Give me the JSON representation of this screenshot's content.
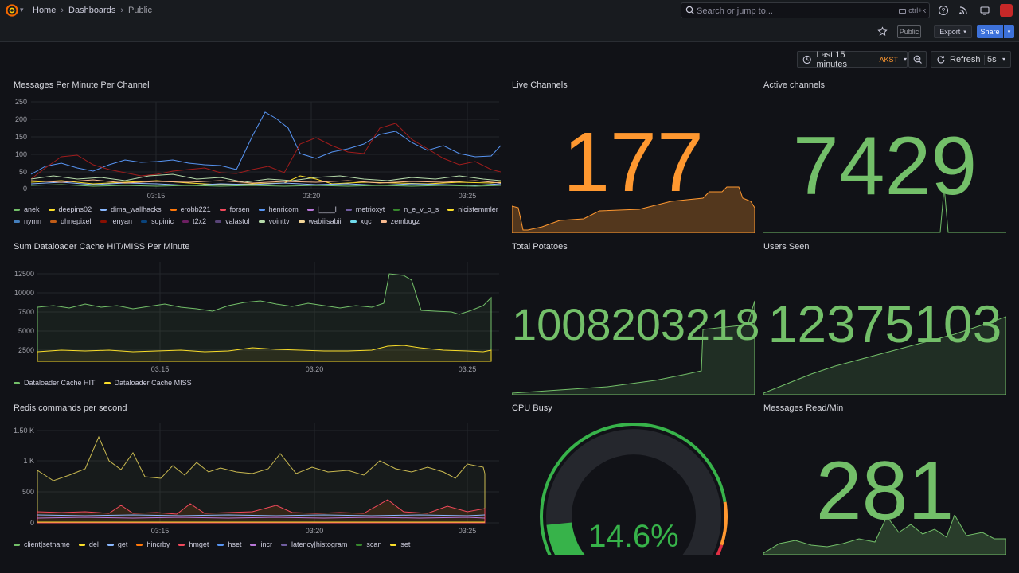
{
  "nav": {
    "breadcrumbs": [
      "Home",
      "Dashboards",
      "Public"
    ],
    "search_placeholder": "Search or jump to...",
    "search_shortcut": "ctrl+k"
  },
  "toolbar": {
    "public_label": "Public",
    "export_label": "Export",
    "share_label": "Share",
    "time_range": "Last 15 minutes",
    "timezone": "AKST",
    "refresh_label": "Refresh",
    "refresh_interval": "5s"
  },
  "time_ticks": [
    "03:15",
    "03:20",
    "03:25"
  ],
  "panels": {
    "messages_per_minute": {
      "title": "Messages Per Minute Per Channel",
      "y_ticks": [
        "250",
        "200",
        "150",
        "100",
        "50",
        "0"
      ],
      "legend": [
        {
          "name": "anek",
          "color": "#73bf69"
        },
        {
          "name": "deepins02",
          "color": "#fade2a"
        },
        {
          "name": "dima_wallhacks",
          "color": "#8ab8ff"
        },
        {
          "name": "erobb221",
          "color": "#ff780a"
        },
        {
          "name": "forsen",
          "color": "#f2495c"
        },
        {
          "name": "henricom",
          "color": "#5794f2"
        },
        {
          "name": "l____l",
          "color": "#b877d9"
        },
        {
          "name": "metrioxyt",
          "color": "#705da0"
        },
        {
          "name": "n_e_v_o_s",
          "color": "#37872d"
        },
        {
          "name": "nicistemmler",
          "color": "#fade2a"
        },
        {
          "name": "nymn",
          "color": "#447ebc"
        },
        {
          "name": "ohnepixel",
          "color": "#c15c17"
        },
        {
          "name": "renyan",
          "color": "#890f02"
        },
        {
          "name": "supinic",
          "color": "#0a437c"
        },
        {
          "name": "t2x2",
          "color": "#6d1f62"
        },
        {
          "name": "valastol",
          "color": "#584477"
        },
        {
          "name": "vointtv",
          "color": "#b7dbab"
        },
        {
          "name": "wabiiisabii",
          "color": "#f4d598"
        },
        {
          "name": "xqc",
          "color": "#70dbed"
        },
        {
          "name": "zembugz",
          "color": "#f9ba8f"
        }
      ]
    },
    "dataloader": {
      "title": "Sum Dataloader Cache HIT/MISS Per Minute",
      "y_ticks": [
        "12500",
        "10000",
        "7500",
        "5000",
        "2500"
      ],
      "legend": [
        {
          "name": "Dataloader Cache HIT",
          "color": "#73bf69"
        },
        {
          "name": "Dataloader Cache MISS",
          "color": "#fade2a"
        }
      ]
    },
    "redis": {
      "title": "Redis commands per second",
      "y_ticks": [
        "1.50 K",
        "1 K",
        "500",
        "0"
      ],
      "legend": [
        {
          "name": "client|setname",
          "color": "#73bf69"
        },
        {
          "name": "del",
          "color": "#fade2a"
        },
        {
          "name": "get",
          "color": "#8ab8ff"
        },
        {
          "name": "hincrby",
          "color": "#ff780a"
        },
        {
          "name": "hmget",
          "color": "#f2495c"
        },
        {
          "name": "hset",
          "color": "#5794f2"
        },
        {
          "name": "incr",
          "color": "#b877d9"
        },
        {
          "name": "latency|histogram",
          "color": "#705da0"
        },
        {
          "name": "scan",
          "color": "#37872d"
        },
        {
          "name": "set",
          "color": "#fade2a"
        }
      ]
    },
    "live_channels": {
      "title": "Live Channels",
      "value": "177",
      "color": "#ff9830"
    },
    "active_channels": {
      "title": "Active channels",
      "value": "7429",
      "color": "#73bf69"
    },
    "total_potatoes": {
      "title": "Total Potatoes",
      "value": "1008203218",
      "color": "#73bf69"
    },
    "users_seen": {
      "title": "Users Seen",
      "value": "12375103",
      "color": "#73bf69"
    },
    "cpu_busy": {
      "title": "CPU Busy",
      "value": "14.6%",
      "gauge_fraction": 0.146,
      "color": "#37b34a"
    },
    "messages_read": {
      "title": "Messages Read/Min",
      "value": "281",
      "color": "#73bf69"
    }
  }
}
